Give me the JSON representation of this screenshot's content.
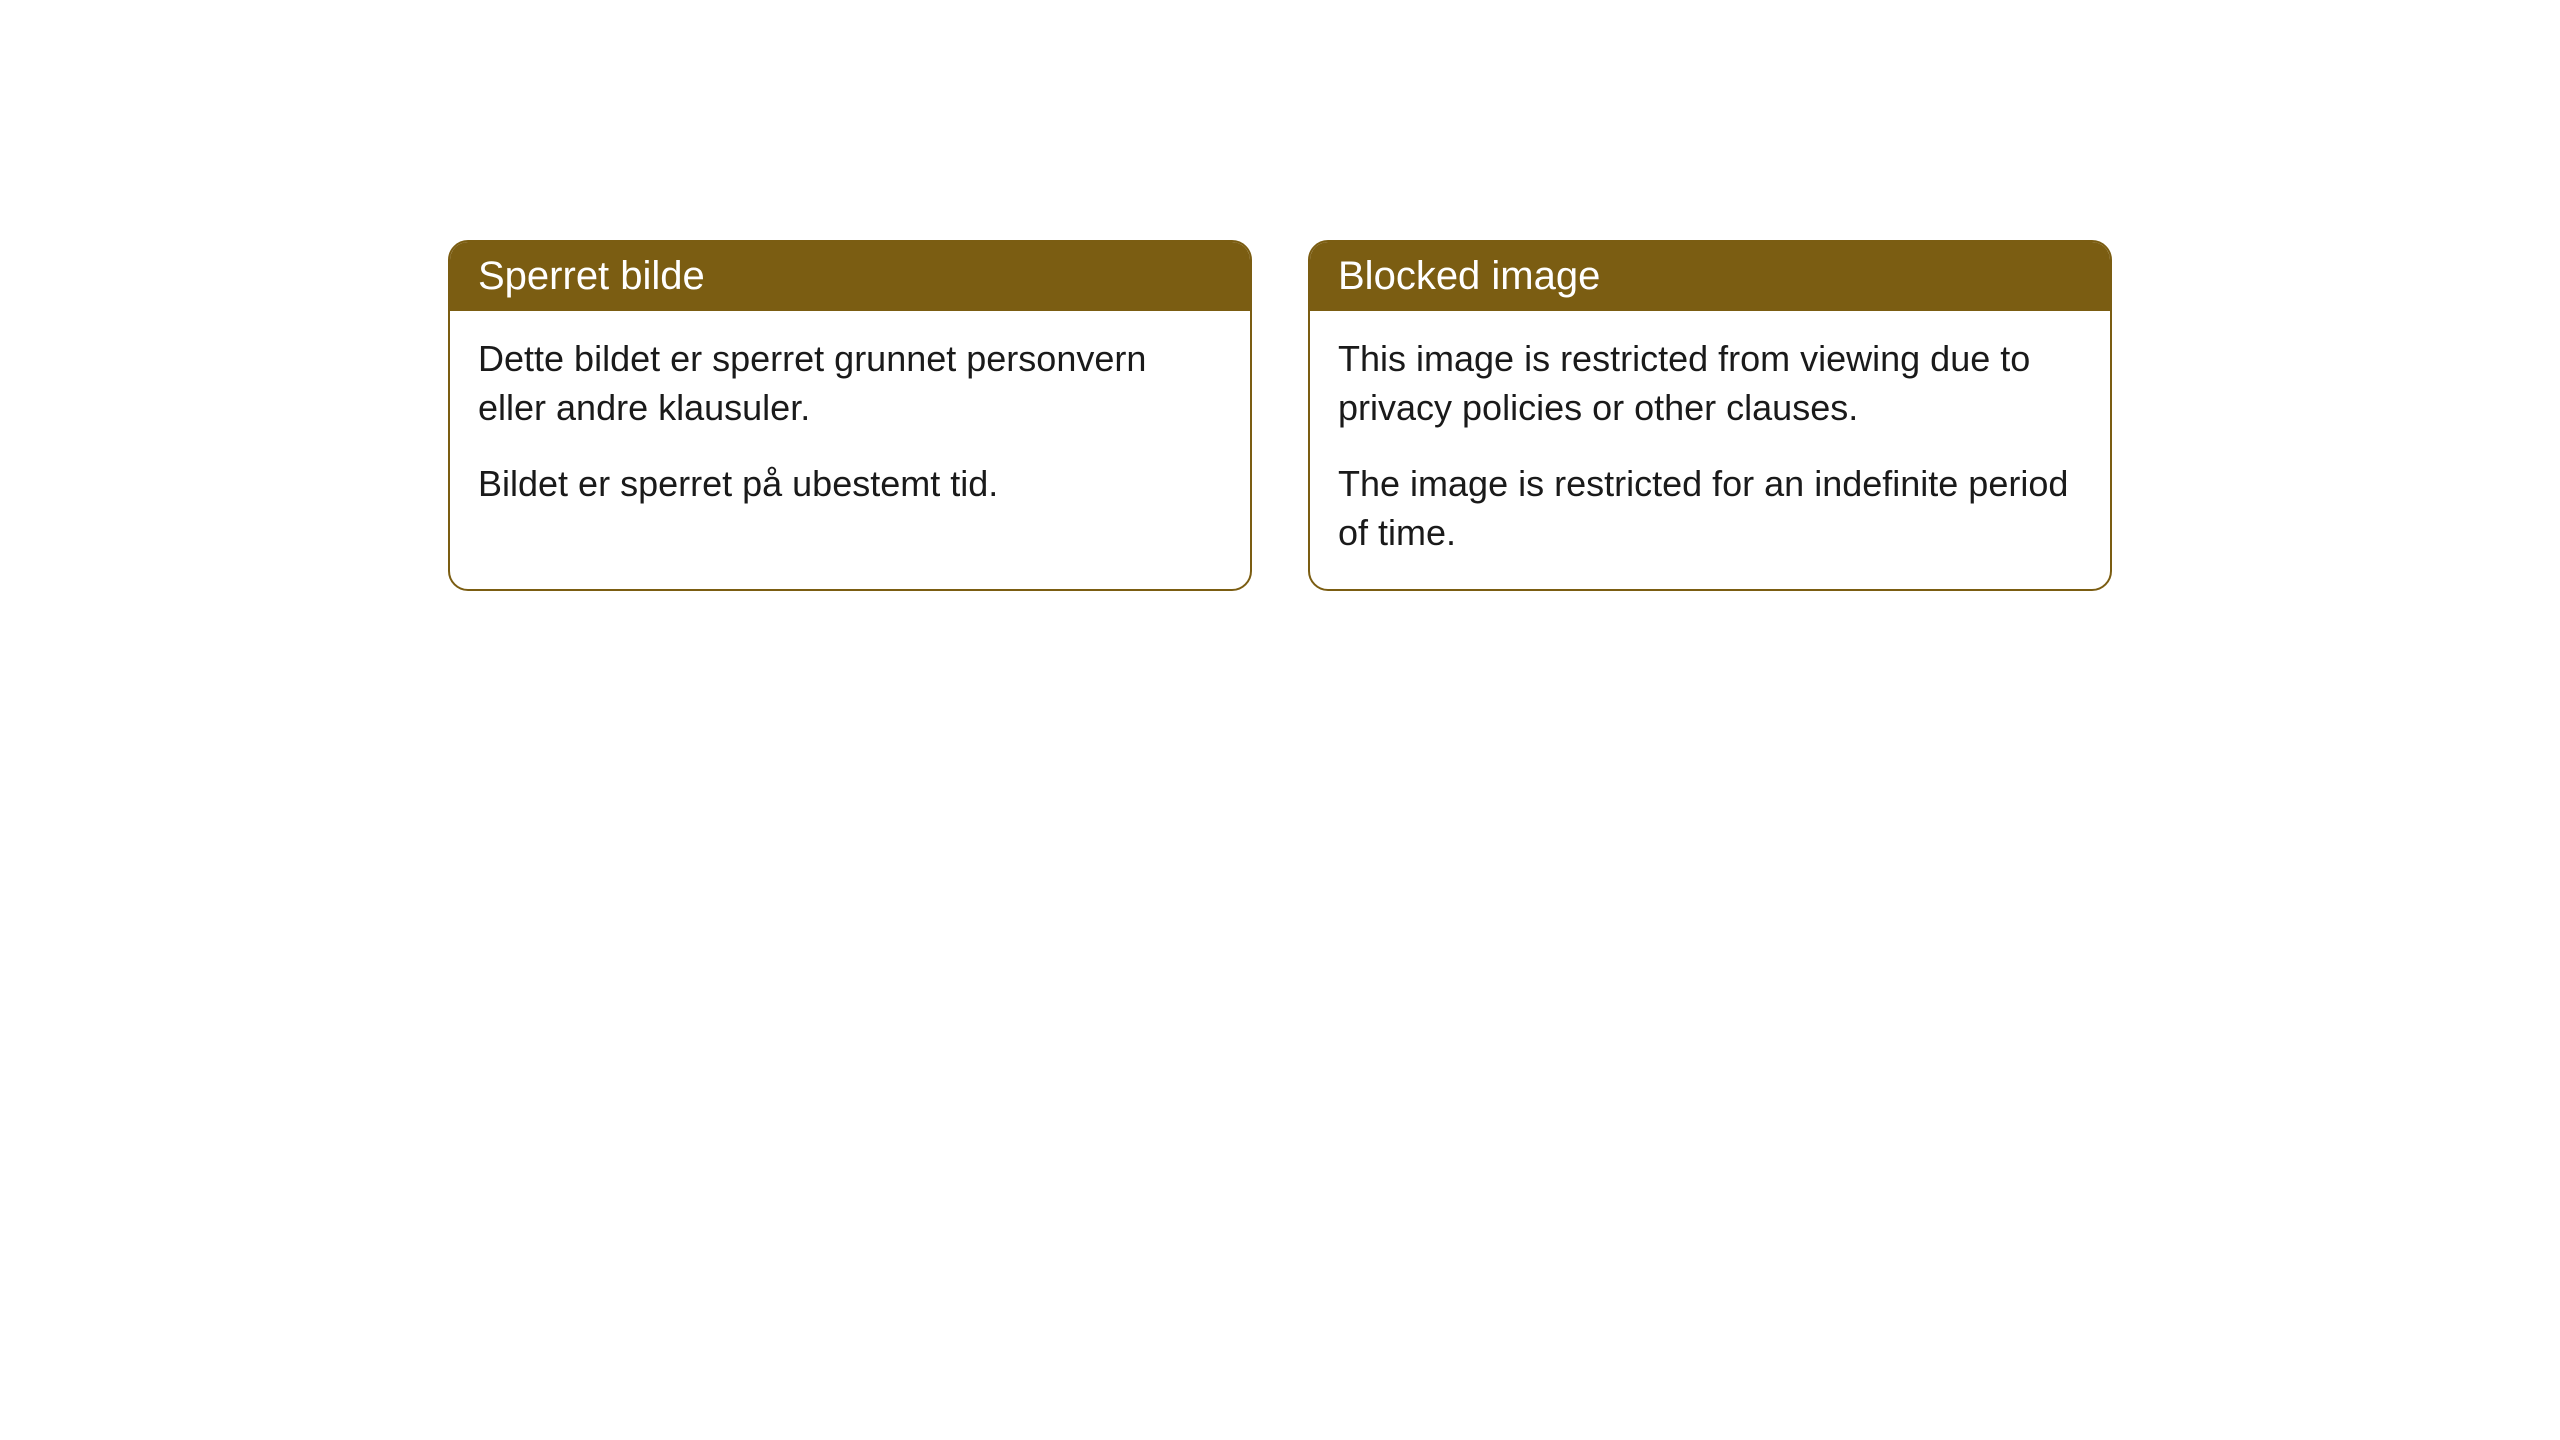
{
  "cards": [
    {
      "title": "Sperret bilde",
      "paragraph1": "Dette bildet er sperret grunnet personvern eller andre klausuler.",
      "paragraph2": "Bildet er sperret på ubestemt tid."
    },
    {
      "title": "Blocked image",
      "paragraph1": "This image is restricted from viewing due to privacy policies or other clauses.",
      "paragraph2": "The image is restricted for an indefinite period of time."
    }
  ],
  "styling": {
    "header_background_color": "#7b5d12",
    "header_text_color": "#ffffff",
    "border_color": "#7b5d12",
    "body_background_color": "#ffffff",
    "body_text_color": "#1a1a1a",
    "border_radius": 20,
    "header_fontsize": 40,
    "body_fontsize": 36,
    "card_gap": 56
  }
}
